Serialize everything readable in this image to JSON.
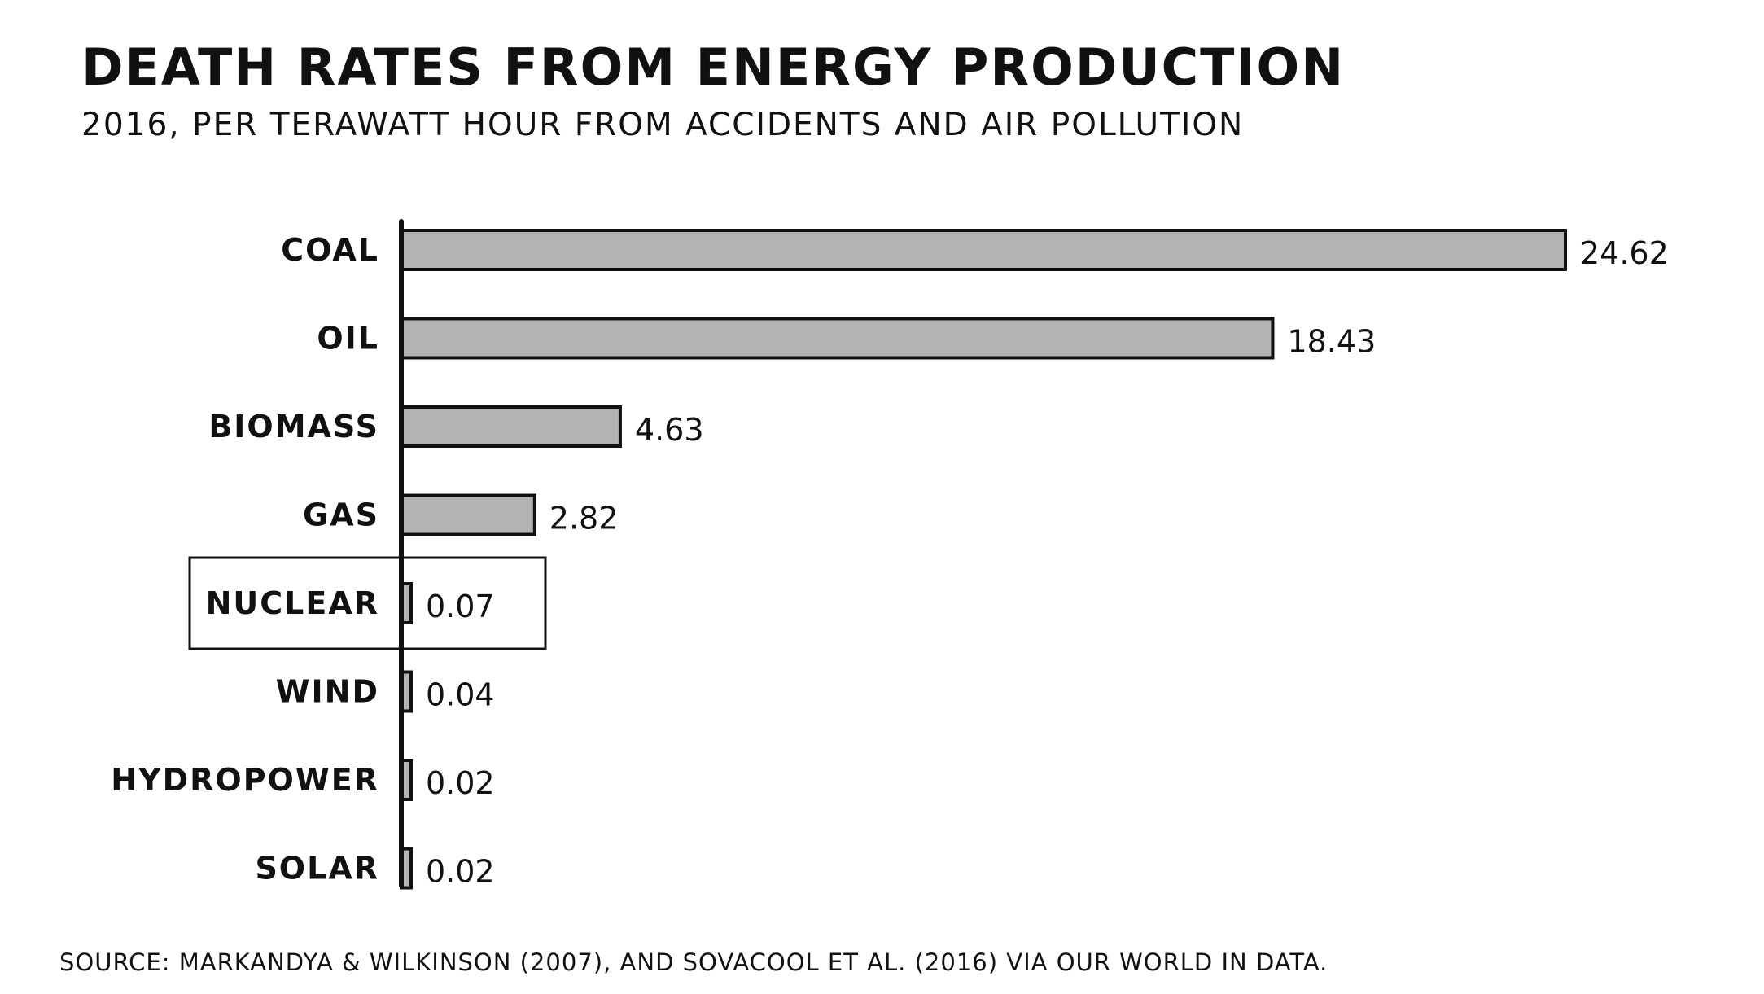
{
  "header": {
    "title": "DEATH RATES FROM ENERGY PRODUCTION",
    "subtitle": "2016, PER TERAWATT HOUR FROM ACCIDENTS AND AIR POLLUTION"
  },
  "footer": {
    "source": "SOURCE: MARKANDYA & WILKINSON (2007), AND SOVACOOL ET AL. (2016) VIA OUR WORLD IN DATA."
  },
  "chart_data": {
    "type": "bar",
    "orientation": "horizontal",
    "title": "DEATH RATES FROM ENERGY PRODUCTION",
    "subtitle": "2016, PER TERAWATT HOUR FROM ACCIDENTS AND AIR POLLUTION",
    "categories": [
      "COAL",
      "OIL",
      "BIOMASS",
      "GAS",
      "NUCLEAR",
      "WIND",
      "HYDROPOWER",
      "SOLAR"
    ],
    "values": [
      24.62,
      18.43,
      4.63,
      2.82,
      0.07,
      0.04,
      0.02,
      0.02
    ],
    "value_labels": [
      "24.62",
      "18.43",
      "4.63",
      "2.82",
      "0.07",
      "0.04",
      "0.02",
      "0.02"
    ],
    "highlight": "NUCLEAR",
    "xlabel": "",
    "ylabel": "",
    "grid": false,
    "colors": {
      "bar_fill": "#b3b3b3",
      "bar_stroke": "#111111",
      "text": "#111111",
      "background": "#ffffff"
    }
  }
}
